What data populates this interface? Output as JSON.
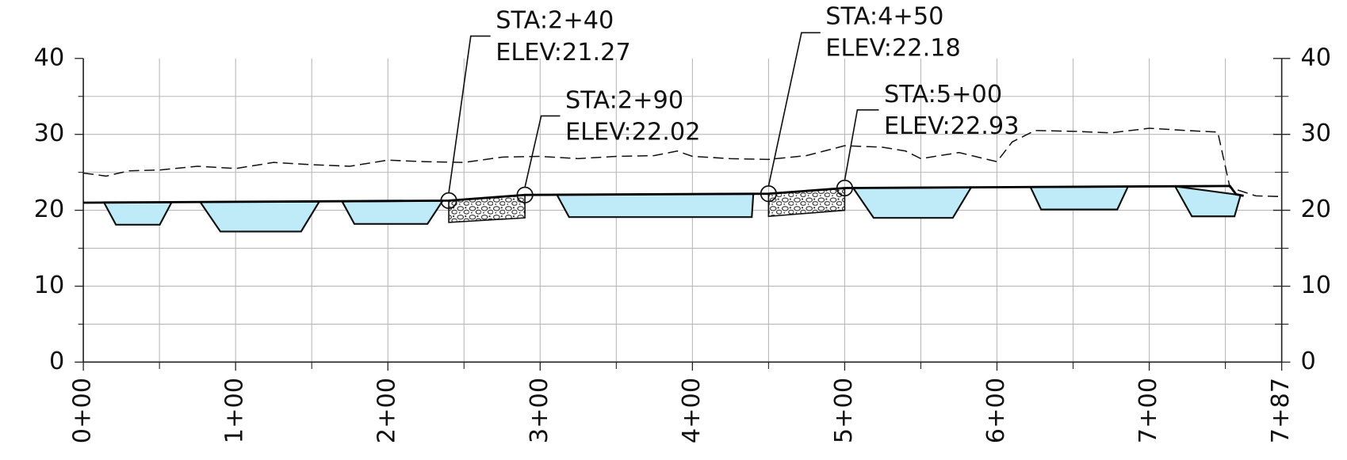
{
  "chart_data": {
    "type": "line",
    "xlim": [
      0,
      787
    ],
    "xticks": [
      {
        "value": 0,
        "label": "0+00"
      },
      {
        "value": 100,
        "label": "1+00"
      },
      {
        "value": 200,
        "label": "2+00"
      },
      {
        "value": 300,
        "label": "3+00"
      },
      {
        "value": 400,
        "label": "4+00"
      },
      {
        "value": 500,
        "label": "5+00"
      },
      {
        "value": 600,
        "label": "6+00"
      },
      {
        "value": 700,
        "label": "7+00"
      },
      {
        "value": 787,
        "label": "7+87"
      }
    ],
    "x_minor_ticks": [
      50,
      150,
      250,
      350,
      450,
      550,
      650,
      750
    ],
    "ylim": [
      0,
      40
    ],
    "yticks": [
      0,
      10,
      20,
      30,
      40
    ],
    "y2lim": [
      0,
      40
    ],
    "y2ticks": [
      0,
      10,
      20,
      30,
      40
    ],
    "y_minor_ticks": [
      5,
      15,
      25,
      35
    ],
    "grid": true,
    "ground": {
      "color": "#111111",
      "x": [
        0,
        15,
        30,
        50,
        75,
        100,
        125,
        150,
        175,
        200,
        225,
        250,
        275,
        300,
        325,
        350,
        375,
        390,
        400,
        425,
        450,
        475,
        500,
        525,
        540,
        550,
        575,
        600,
        610,
        625,
        650,
        675,
        700,
        725,
        745,
        753,
        770,
        787
      ],
      "y": [
        24.9,
        24.5,
        25.2,
        25.3,
        25.8,
        25.5,
        26.3,
        26.0,
        25.8,
        26.6,
        26.4,
        26.3,
        27.0,
        27.1,
        26.8,
        27.1,
        27.2,
        27.8,
        27.1,
        26.8,
        26.7,
        27.2,
        28.5,
        28.3,
        27.8,
        26.8,
        27.6,
        26.4,
        29.0,
        30.5,
        30.4,
        30.2,
        30.8,
        30.5,
        30.3,
        23.0,
        21.9,
        21.8
      ]
    },
    "profile": {
      "color": "#000000",
      "x": [
        0,
        240,
        290,
        450,
        500,
        753,
        757,
        762
      ],
      "y": [
        21.0,
        21.27,
        22.02,
        22.18,
        22.93,
        23.2,
        22.1,
        21.9
      ]
    },
    "basin_color": "#bfeaf7",
    "basins": [
      {
        "x": [
          13.5,
          21.4,
          50.2,
          58
        ],
        "y": [
          21.05,
          18.1,
          18.1,
          21.05
        ]
      },
      {
        "x": [
          76.7,
          90,
          143,
          155
        ],
        "y": [
          21.1,
          17.2,
          17.2,
          21.15
        ]
      },
      {
        "x": [
          170,
          178,
          226,
          236
        ],
        "y": [
          21.15,
          18.2,
          18.2,
          21.25
        ]
      },
      {
        "x": [
          311,
          319,
          439,
          440
        ],
        "y": [
          22.05,
          19.1,
          19.1,
          22.15
        ]
      },
      {
        "x": [
          505.5,
          519,
          571,
          583
        ],
        "y": [
          22.95,
          19.0,
          19.0,
          23.0
        ]
      },
      {
        "x": [
          622,
          629,
          679,
          686
        ],
        "y": [
          23.05,
          20.1,
          20.1,
          23.1
        ]
      },
      {
        "x": [
          717,
          728,
          756,
          760
        ],
        "y": [
          23.15,
          19.2,
          19.2,
          22.0
        ]
      }
    ],
    "riprap": [
      {
        "x": [
          240,
          290,
          290,
          240
        ],
        "y": [
          21.27,
          22.02,
          19.0,
          18.4
        ]
      },
      {
        "x": [
          450,
          500,
          500,
          450
        ],
        "y": [
          22.18,
          22.93,
          20.0,
          19.2
        ]
      }
    ],
    "annotations": [
      {
        "x": 240,
        "y": 21.27,
        "station": "STA:2+40",
        "elevation": "ELEV:21.27"
      },
      {
        "x": 290,
        "y": 22.02,
        "station": "STA:2+90",
        "elevation": "ELEV:22.02"
      },
      {
        "x": 450,
        "y": 22.18,
        "station": "STA:4+50",
        "elevation": "ELEV:22.18"
      },
      {
        "x": 500,
        "y": 22.93,
        "station": "STA:5+00",
        "elevation": "ELEV:22.93"
      }
    ]
  }
}
